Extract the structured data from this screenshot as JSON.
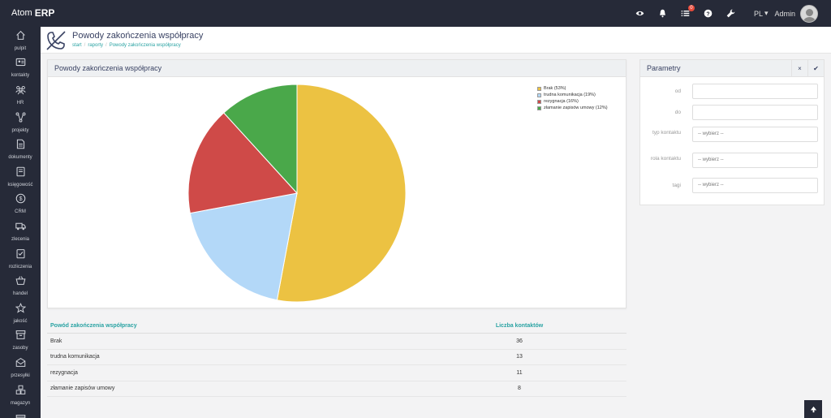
{
  "app": {
    "logo_mark": "Atom",
    "logo_erp": "ERP"
  },
  "topbar": {
    "icons": [
      "eye-icon",
      "bell-icon",
      "list-icon",
      "help-icon",
      "wrench-icon"
    ],
    "badge": "0",
    "lang": "PL",
    "user": "Admin"
  },
  "sidebar": {
    "items": [
      {
        "label": "pulpit",
        "icon": "home-icon"
      },
      {
        "label": "kontakty",
        "icon": "contacts-icon"
      },
      {
        "label": "HR",
        "icon": "people-icon"
      },
      {
        "label": "projekty",
        "icon": "projects-icon"
      },
      {
        "label": "dokumenty",
        "icon": "document-icon"
      },
      {
        "label": "księgowość",
        "icon": "book-icon"
      },
      {
        "label": "CRM",
        "icon": "dollar-icon"
      },
      {
        "label": "zlecenia",
        "icon": "truck-icon"
      },
      {
        "label": "rozliczenia",
        "icon": "checklist-icon"
      },
      {
        "label": "handel",
        "icon": "basket-icon"
      },
      {
        "label": "jakość",
        "icon": "star-icon"
      },
      {
        "label": "zasoby",
        "icon": "archive-icon"
      },
      {
        "label": "przesyłki",
        "icon": "mail-icon"
      },
      {
        "label": "magazyn",
        "icon": "boxes-icon"
      },
      {
        "label": "",
        "icon": "window-icon"
      }
    ]
  },
  "header": {
    "title": "Powody zakończenia współpracy",
    "breadcrumb": [
      "start",
      "raporty",
      "Powody zakończenia współpracy"
    ]
  },
  "chart_panel": {
    "title": "Powody zakończenia współpracy"
  },
  "chart_data": {
    "type": "pie",
    "title": "",
    "slices": [
      {
        "label": "Brak (53%)",
        "value": 36,
        "color": "#ecc242"
      },
      {
        "label": "trudna komunikacja (19%)",
        "value": 13,
        "color": "#b3d8f8"
      },
      {
        "label": "rezygnacja (16%)",
        "value": 11,
        "color": "#cf4a48"
      },
      {
        "label": "złamanie zapisów umowy (12%)",
        "value": 8,
        "color": "#4aa84a"
      }
    ],
    "legend": "top-right"
  },
  "table": {
    "headers": [
      "Powód zakończenia współpracy",
      "Liczba kontaktów"
    ],
    "rows": [
      {
        "reason": "Brak",
        "count": "36"
      },
      {
        "reason": "trudna komunikacja",
        "count": "13"
      },
      {
        "reason": "rezygnacja",
        "count": "11"
      },
      {
        "reason": "złamanie zapisów umowy",
        "count": "8"
      }
    ]
  },
  "params": {
    "title": "Parametry",
    "close_label": "×",
    "apply_label": "✔",
    "fields": [
      {
        "label": "od",
        "value": ""
      },
      {
        "label": "do",
        "value": ""
      },
      {
        "label": "typ kontaktu",
        "value": "-- wybierz --"
      },
      {
        "label": "rola kontaktu",
        "value": "-- wybierz --"
      },
      {
        "label": "tagi",
        "value": "-- wybierz --"
      }
    ]
  }
}
